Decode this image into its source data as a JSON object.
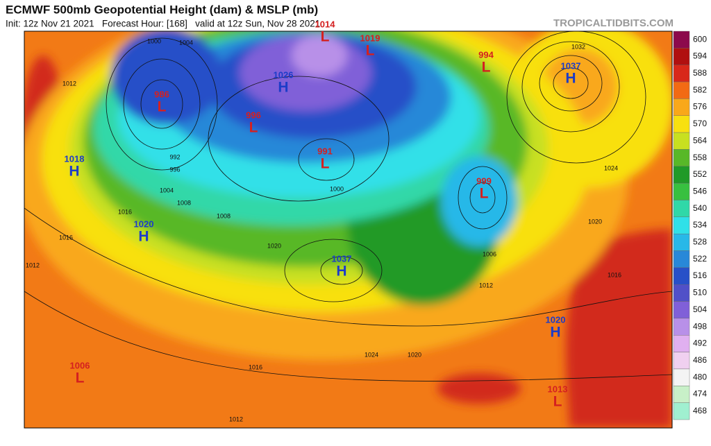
{
  "header": {
    "title": "ECMWF 500mb Geopotential Height (dam) & MSLP (mb)",
    "subtitle": "Init: 12z Nov 21 2021   Forecast Hour: [168]   valid at 12z Sun, Nov 28 2021",
    "source": "TROPICALTIDBITS.COM"
  },
  "colorbar": {
    "levels": [
      600,
      594,
      588,
      582,
      576,
      570,
      564,
      558,
      552,
      546,
      540,
      534,
      528,
      522,
      516,
      510,
      504,
      498,
      492,
      486,
      480,
      474,
      468
    ],
    "colors": [
      "#8c0a4c",
      "#b01010",
      "#d8281a",
      "#f26a14",
      "#f9a81a",
      "#f8e010",
      "#c8e020",
      "#58b828",
      "#209a28",
      "#38c040",
      "#30d8a8",
      "#30e0e8",
      "#28b8e8",
      "#2888d8",
      "#2850c8",
      "#5050c8",
      "#8060d8",
      "#b890e8",
      "#e0b0f0",
      "#f0d0f0",
      "#f4f4f4",
      "#c8f0c8",
      "#a0f0d0"
    ]
  },
  "centers": [
    {
      "letter": "L",
      "value": "1014"
    },
    {
      "letter": "L",
      "value": "1019"
    },
    {
      "letter": "L",
      "value": "994"
    },
    {
      "letter": "H",
      "value": "1037"
    },
    {
      "letter": "L",
      "value": "986"
    },
    {
      "letter": "H",
      "value": "1026"
    },
    {
      "letter": "L",
      "value": "996"
    },
    {
      "letter": "L",
      "value": "991"
    },
    {
      "letter": "H",
      "value": "1018"
    },
    {
      "letter": "L",
      "value": "999"
    },
    {
      "letter": "H",
      "value": "1020"
    },
    {
      "letter": "H",
      "value": "1037"
    },
    {
      "letter": "H",
      "value": "1020"
    },
    {
      "letter": "L",
      "value": "1006"
    },
    {
      "letter": "L",
      "value": "1013"
    }
  ],
  "contour_labels": [
    "1000",
    "1004",
    "1012",
    "1016",
    "1016",
    "1012",
    "1020",
    "1024",
    "1020",
    "1016",
    "1012",
    "1006",
    "1024",
    "1020",
    "1016",
    "1012",
    "1032",
    "992",
    "996",
    "1004",
    "1008",
    "1008",
    "1000"
  ]
}
